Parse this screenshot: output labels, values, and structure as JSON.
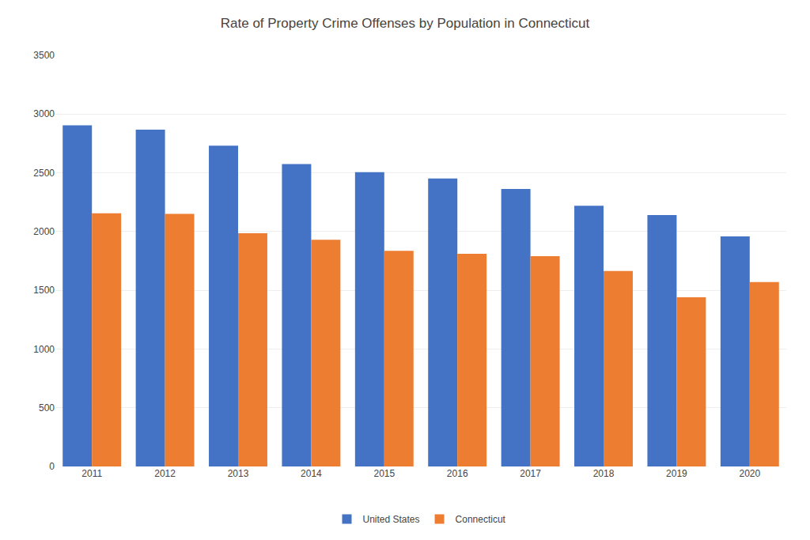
{
  "chart_data": {
    "type": "bar",
    "title": "Rate of Property Crime Offenses by Population in Connecticut",
    "categories": [
      "2011",
      "2012",
      "2013",
      "2014",
      "2015",
      "2016",
      "2017",
      "2018",
      "2019",
      "2020"
    ],
    "series": [
      {
        "name": "United States",
        "color": "#4472C4",
        "values": [
          2905,
          2868,
          2731,
          2574,
          2506,
          2451,
          2362,
          2220,
          2140,
          1958
        ]
      },
      {
        "name": "Connecticut",
        "color": "#ED7D31",
        "values": [
          2155,
          2150,
          1985,
          1930,
          1835,
          1810,
          1790,
          1665,
          1440,
          1570
        ]
      }
    ],
    "ylim": [
      0,
      3500
    ],
    "yticks": [
      0,
      500,
      1000,
      1500,
      2000,
      2500,
      3000,
      3500
    ],
    "grid": true,
    "legend": "bottom"
  }
}
